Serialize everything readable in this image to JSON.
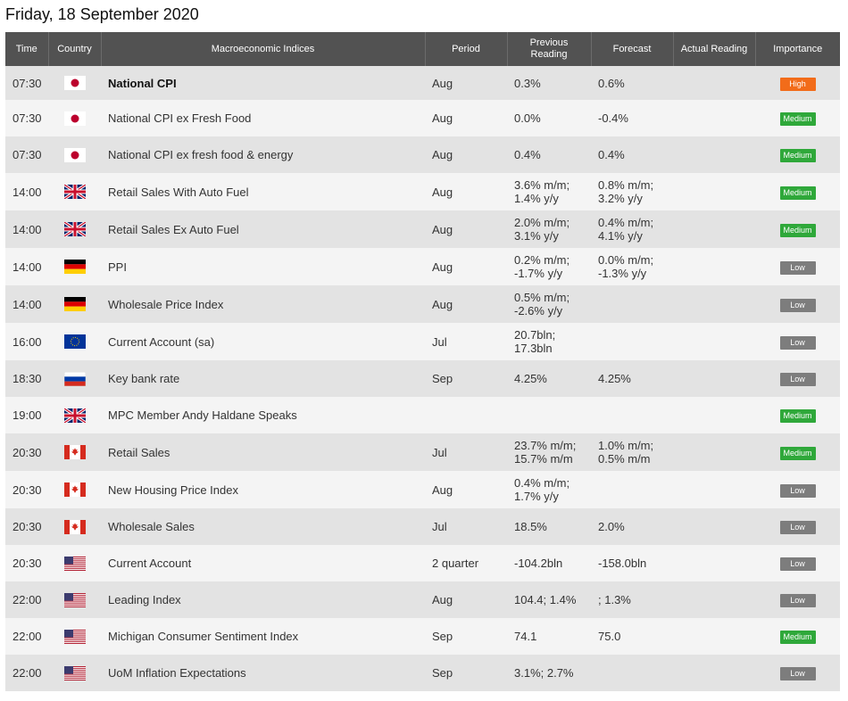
{
  "page": {
    "title": "Friday, 18 September 2020"
  },
  "columns": {
    "time": "Time",
    "country": "Country",
    "indices": "Macroeconomic Indices",
    "period": "Period",
    "previous_line1": "Previous",
    "previous_line2": "Reading",
    "forecast": "Forecast",
    "actual": "Actual Reading",
    "importance": "Importance"
  },
  "importance_colors": {
    "High": "#f26c1a",
    "Medium": "#2fa83a",
    "Low": "#7d7d7d"
  },
  "events": [
    {
      "time": "07:30",
      "flag": "japan-flag-icon",
      "event": "National CPI",
      "bold": true,
      "period": "Aug",
      "previous": [
        "0.3%"
      ],
      "forecast": [
        "0.6%"
      ],
      "actual": "",
      "importance": "High"
    },
    {
      "time": "07:30",
      "flag": "japan-flag-icon",
      "event": "National CPI ex Fresh Food",
      "period": "Aug",
      "previous": [
        "0.0%"
      ],
      "forecast": [
        "-0.4%"
      ],
      "actual": "",
      "importance": "Medium"
    },
    {
      "time": "07:30",
      "flag": "japan-flag-icon",
      "event": "National CPI ex fresh food & energy",
      "period": "Aug",
      "previous": [
        "0.4%"
      ],
      "forecast": [
        "0.4%"
      ],
      "actual": "",
      "importance": "Medium"
    },
    {
      "time": "14:00",
      "flag": "uk-flag-icon",
      "event": "Retail Sales With Auto Fuel",
      "period": "Aug",
      "previous": [
        "3.6% m/m;",
        "1.4% y/y"
      ],
      "forecast": [
        "0.8% m/m;",
        "3.2% y/y"
      ],
      "actual": "",
      "importance": "Medium"
    },
    {
      "time": "14:00",
      "flag": "uk-flag-icon",
      "event": "Retail Sales Ex Auto Fuel",
      "period": "Aug",
      "previous": [
        "2.0% m/m;",
        "3.1% y/y"
      ],
      "forecast": [
        "0.4% m/m;",
        "4.1% y/y"
      ],
      "actual": "",
      "importance": "Medium"
    },
    {
      "time": "14:00",
      "flag": "germany-flag-icon",
      "event": "PPI",
      "period": "Aug",
      "previous": [
        "0.2% m/m;",
        "-1.7% y/y"
      ],
      "forecast": [
        "0.0% m/m;",
        "-1.3% y/y"
      ],
      "actual": "",
      "importance": "Low"
    },
    {
      "time": "14:00",
      "flag": "germany-flag-icon",
      "event": "Wholesale Price Index",
      "period": "Aug",
      "previous": [
        "0.5% m/m;",
        "-2.6% y/y"
      ],
      "forecast": [],
      "actual": "",
      "importance": "Low"
    },
    {
      "time": "16:00",
      "flag": "eu-flag-icon",
      "event": "Current Account (sa)",
      "period": "Jul",
      "previous": [
        "20.7bln;",
        "17.3bln"
      ],
      "forecast": [],
      "actual": "",
      "importance": "Low"
    },
    {
      "time": "18:30",
      "flag": "russia-flag-icon",
      "event": "Key bank rate",
      "period": "Sep",
      "previous": [
        "4.25%"
      ],
      "forecast": [
        "4.25%"
      ],
      "actual": "",
      "importance": "Low"
    },
    {
      "time": "19:00",
      "flag": "uk-flag-icon",
      "event": "MPC Member Andy Haldane Speaks",
      "period": "",
      "previous": [],
      "forecast": [],
      "actual": "",
      "importance": "Medium"
    },
    {
      "time": "20:30",
      "flag": "canada-flag-icon",
      "event": "Retail Sales",
      "period": "Jul",
      "previous": [
        "23.7% m/m;",
        "15.7% m/m"
      ],
      "forecast": [
        "1.0% m/m;",
        "0.5% m/m"
      ],
      "actual": "",
      "importance": "Medium"
    },
    {
      "time": "20:30",
      "flag": "canada-flag-icon",
      "event": "New Housing Price Index",
      "period": "Aug",
      "previous": [
        "0.4% m/m;",
        "1.7% y/y"
      ],
      "forecast": [],
      "actual": "",
      "importance": "Low"
    },
    {
      "time": "20:30",
      "flag": "canada-flag-icon",
      "event": "Wholesale Sales",
      "period": "Jul",
      "previous": [
        "18.5%"
      ],
      "forecast": [
        "2.0%"
      ],
      "actual": "",
      "importance": "Low"
    },
    {
      "time": "20:30",
      "flag": "usa-flag-icon",
      "event": "Current Account",
      "period": "2 quarter",
      "previous": [
        "-104.2bln"
      ],
      "forecast": [
        "-158.0bln"
      ],
      "actual": "",
      "importance": "Low"
    },
    {
      "time": "22:00",
      "flag": "usa-flag-icon",
      "event": "Leading Index",
      "period": "Aug",
      "previous": [
        "104.4; 1.4%"
      ],
      "forecast": [
        "; 1.3%"
      ],
      "actual": "",
      "importance": "Low"
    },
    {
      "time": "22:00",
      "flag": "usa-flag-icon",
      "event": "Michigan Consumer Sentiment Index",
      "period": "Sep",
      "previous": [
        "74.1"
      ],
      "forecast": [
        "75.0"
      ],
      "actual": "",
      "importance": "Medium"
    },
    {
      "time": "22:00",
      "flag": "usa-flag-icon",
      "event": "UoM Inflation Expectations",
      "period": "Sep",
      "previous": [
        "3.1%; 2.7%"
      ],
      "forecast": [],
      "actual": "",
      "importance": "Low"
    }
  ]
}
